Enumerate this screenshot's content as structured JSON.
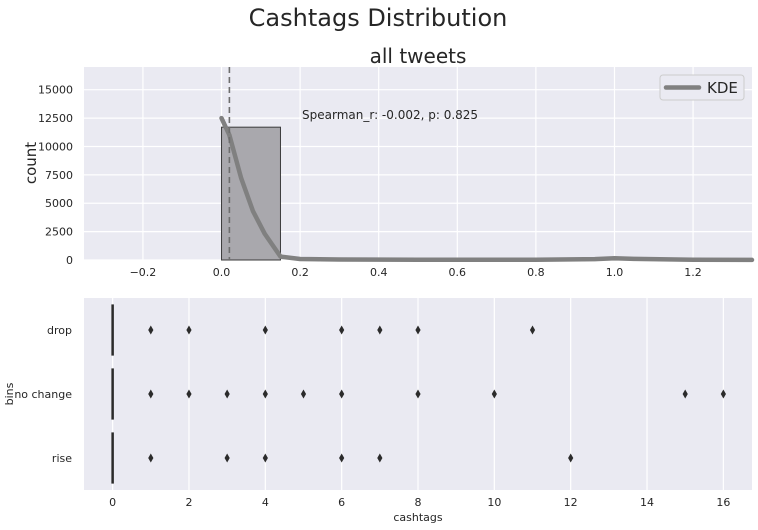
{
  "figure": {
    "title": "Cashtags Distribution"
  },
  "colors": {
    "background": "#EAEAF2",
    "grid": "#FFFFFF",
    "hist_fill": "#A9A8AD",
    "hist_edge": "#3A3A3A",
    "kde": "#808080",
    "median_line": "#6E6E6E",
    "points": "#2B2B2B",
    "text": "#262626"
  },
  "chart_data": [
    {
      "type": "bar",
      "title": "all tweets",
      "xlabel": "",
      "ylabel": "count",
      "xlim": [
        -0.35,
        1.35
      ],
      "ylim": [
        0,
        17000
      ],
      "grid": true,
      "xticks": [
        -0.2,
        0.0,
        0.2,
        0.4,
        0.6,
        0.8,
        1.0,
        1.2
      ],
      "xtick_labels": [
        "−0.2",
        "0.0",
        "0.2",
        "0.4",
        "0.6",
        "0.8",
        "1.0",
        "1.2"
      ],
      "yticks": [
        0,
        2500,
        5000,
        7500,
        10000,
        12500,
        15000
      ],
      "ytick_labels": [
        "0",
        "2500",
        "5000",
        "7500",
        "10000",
        "12500",
        "15000"
      ],
      "histogram": [
        {
          "x0": 0.0,
          "x1": 0.15,
          "count": 11700
        }
      ],
      "kde": {
        "name": "KDE",
        "x": [
          0.0,
          0.02,
          0.05,
          0.08,
          0.11,
          0.15,
          0.2,
          0.3,
          0.5,
          0.8,
          0.95,
          1.0,
          1.05,
          1.2,
          1.35
        ],
        "y": [
          12500,
          11000,
          7200,
          4300,
          2300,
          300,
          90,
          40,
          30,
          30,
          80,
          150,
          100,
          30,
          10
        ]
      },
      "vline": {
        "x": 0.02
      },
      "legend": {
        "placement": "top-right",
        "entries": [
          "KDE"
        ]
      },
      "annotation": "Spearman_r: -0.002, p: 0.825"
    },
    {
      "type": "scatter",
      "subtype": "box-strip",
      "title": "",
      "xlabel": "cashtags",
      "ylabel": "bins",
      "xlim": [
        -0.75,
        16.75
      ],
      "xticks": [
        0,
        2,
        4,
        6,
        8,
        10,
        12,
        14,
        16
      ],
      "xtick_labels": [
        "0",
        "2",
        "4",
        "6",
        "8",
        "10",
        "12",
        "14",
        "16"
      ],
      "grid": true,
      "categories": [
        "drop",
        "no change",
        "rise"
      ],
      "box_values": [
        0,
        0,
        0
      ],
      "outliers": [
        {
          "name": "drop",
          "values": [
            1,
            2,
            4,
            6,
            7,
            8,
            11
          ]
        },
        {
          "name": "no change",
          "values": [
            1,
            2,
            3,
            4,
            5,
            6,
            8,
            10,
            15,
            16
          ]
        },
        {
          "name": "rise",
          "values": [
            1,
            3,
            4,
            6,
            7,
            12
          ]
        }
      ]
    }
  ]
}
